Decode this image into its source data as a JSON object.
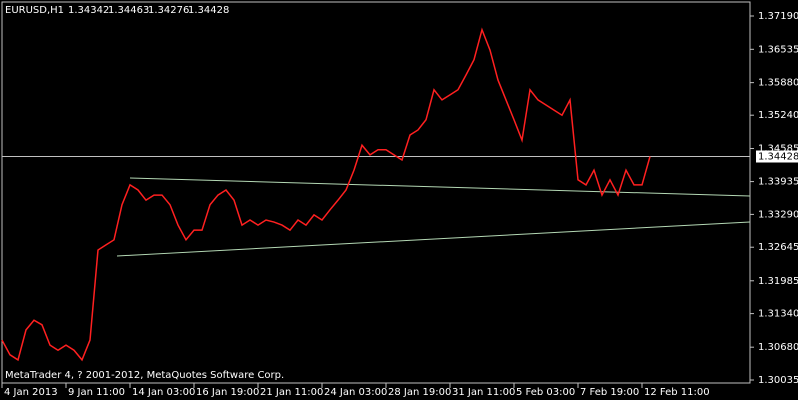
{
  "header": {
    "symbol": "EURUSD,H1",
    "ohlc": [
      1.34342,
      1.34463,
      1.34276,
      1.34428
    ]
  },
  "footer": "MetaTrader 4, ? 2001-2012, MetaQuotes Software Corp.",
  "chart_data": {
    "type": "line",
    "categories": [
      "4 Jan 2013",
      null,
      null,
      null,
      null,
      null,
      null,
      null,
      "9 Jan 11:00",
      null,
      null,
      null,
      null,
      null,
      null,
      null,
      "14 Jan 03:00",
      null,
      null,
      null,
      null,
      null,
      null,
      null,
      "16 Jan 19:00",
      null,
      null,
      null,
      null,
      null,
      null,
      null,
      "21 Jan 11:00",
      null,
      null,
      null,
      null,
      null,
      null,
      null,
      "24 Jan 03:00",
      null,
      null,
      null,
      null,
      null,
      null,
      null,
      "28 Jan 19:00",
      null,
      null,
      null,
      null,
      null,
      null,
      null,
      "31 Jan 11:00",
      null,
      null,
      null,
      null,
      null,
      null,
      null,
      "5 Feb 03:00",
      null,
      null,
      null,
      null,
      null,
      null,
      null,
      "7 Feb 19:00",
      null,
      null,
      null,
      null,
      null,
      null,
      null,
      "12 Feb 11:00",
      null
    ],
    "values": [
      1.3082,
      1.3053,
      1.3043,
      1.3102,
      1.3121,
      1.3112,
      1.3072,
      1.3062,
      1.3072,
      1.3062,
      1.3043,
      1.3082,
      1.3259,
      1.3269,
      1.3279,
      1.3348,
      1.3387,
      1.3377,
      1.3357,
      1.3367,
      1.3367,
      1.3348,
      1.3308,
      1.3279,
      1.3298,
      1.3298,
      1.3348,
      1.3367,
      1.3377,
      1.3357,
      1.3308,
      1.3318,
      1.3308,
      1.3318,
      1.3314,
      1.3308,
      1.3298,
      1.3318,
      1.3308,
      1.3328,
      1.3318,
      1.3338,
      1.3357,
      1.3377,
      1.3416,
      1.3465,
      1.3446,
      1.3456,
      1.3456,
      1.3446,
      1.3436,
      1.3485,
      1.3495,
      1.3515,
      1.3574,
      1.3554,
      1.3564,
      1.3574,
      1.3603,
      1.3633,
      1.3692,
      1.3652,
      1.3593,
      1.3554,
      1.3515,
      1.3475,
      1.3574,
      1.3554,
      1.3544,
      1.3534,
      1.3524,
      1.3554,
      1.3397,
      1.3387,
      1.3416,
      1.3367,
      1.3397,
      1.3367,
      1.3416,
      1.3387,
      1.3387,
      1.34428
    ],
    "color": "#ff2020",
    "current_price": 1.34428,
    "ylim": [
      1.29976,
      1.37465
    ],
    "yticks": [
      {
        "value": 1.3719,
        "label": "1.37190"
      },
      1.36535,
      {
        "value": 1.3588,
        "label": "1.35880"
      },
      {
        "value": 1.3524,
        "label": "1.35240"
      },
      1.34585,
      1.33935,
      {
        "value": 1.3329,
        "label": "1.33290"
      },
      1.32645,
      1.31985,
      {
        "value": 1.3134,
        "label": "1.31340"
      },
      {
        "value": 1.3068,
        "label": "1.30680"
      },
      1.30035
    ]
  }
}
